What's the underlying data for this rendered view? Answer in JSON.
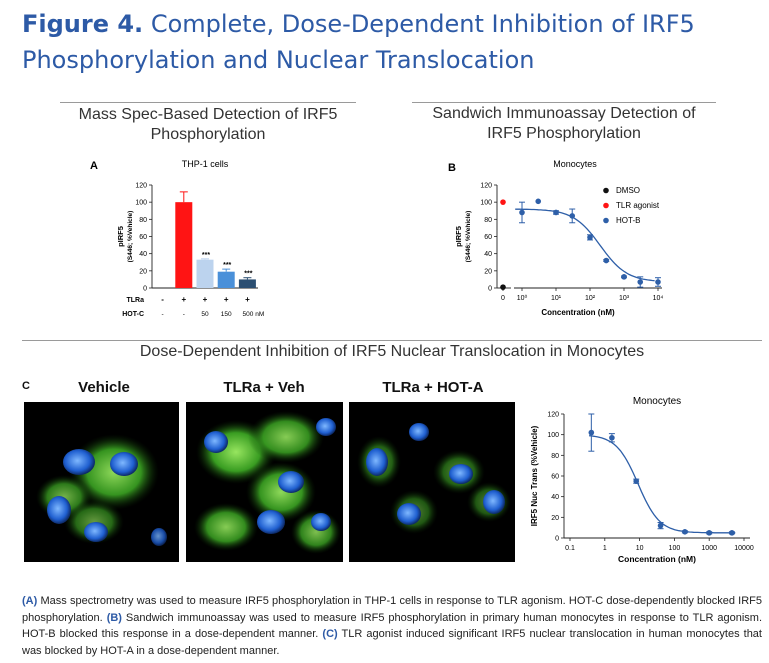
{
  "figure": {
    "label": "Figure 4.",
    "title": "Complete, Dose-Dependent Inhibition of IRF5 Phosphorylation and Nuclear Translocation"
  },
  "sections": {
    "a_title_line1": "Mass Spec-Based Detection of IRF5",
    "a_title_line2": "Phosphorylation",
    "b_title_line1": "Sandwich Immunoassay Detection of",
    "b_title_line2": "IRF5 Phosphorylation",
    "c_title": "Dose-Dependent Inhibition of IRF5 Nuclear Translocation in Monocytes"
  },
  "panel_letters": {
    "a": "A",
    "b": "B",
    "c": "C"
  },
  "image_panels": [
    {
      "title": "Vehicle"
    },
    {
      "title": "TLRa + Veh"
    },
    {
      "title": "TLRa + HOT-A"
    }
  ],
  "colors": {
    "title_blue": "#2d5aa6",
    "series_blue": "#2e5fa8",
    "red": "#ff1414",
    "light_blue": "#bcd3ee",
    "mid_blue": "#4a90d9",
    "dark_blue": "#2c4f72"
  },
  "chart_data": [
    {
      "id": "A",
      "type": "bar",
      "title": "THP-1 cells",
      "ylabel_line1": "pIRF5",
      "ylabel_line2": "(S446; %Vehicle)",
      "ylim": [
        0,
        120
      ],
      "yticks": [
        0,
        20,
        40,
        60,
        80,
        100,
        120
      ],
      "row_labels": {
        "tlra": "TLRa",
        "hotc": "HOT-C"
      },
      "bars": [
        {
          "tlra": "-",
          "hotc": "-",
          "value": 0,
          "error": 0,
          "sig": "",
          "color": "#ff1414"
        },
        {
          "tlra": "+",
          "hotc": "-",
          "value": 100,
          "error": 12,
          "sig": "",
          "color": "#ff1414"
        },
        {
          "tlra": "+",
          "hotc": "50",
          "value": 33,
          "error": 1,
          "sig": "***",
          "color": "#bcd3ee"
        },
        {
          "tlra": "+",
          "hotc": "150",
          "value": 19,
          "error": 3,
          "sig": "***",
          "color": "#4a90d9"
        },
        {
          "tlra": "+",
          "hotc": "500 nM",
          "value": 10,
          "error": 2,
          "sig": "***",
          "color": "#2c4f72"
        }
      ]
    },
    {
      "id": "B",
      "type": "scatter",
      "title": "Monocytes",
      "ylabel_line1": "pIRF5",
      "ylabel_line2": "(S446; %Vehicle)",
      "xlabel": "Concentration (nM)",
      "x_scale": "log",
      "ylim": [
        0,
        120
      ],
      "yticks": [
        0,
        20,
        40,
        60,
        80,
        100,
        120
      ],
      "xtick_labels": [
        "0",
        "10⁰",
        "10¹",
        "10²",
        "10³",
        "10⁴"
      ],
      "legend": [
        "DMSO",
        "TLR agonist",
        "HOT-B"
      ],
      "legend_colors": [
        "#111111",
        "#ff1414",
        "#2e5fa8"
      ],
      "controls": [
        {
          "name": "DMSO",
          "y": 1,
          "color": "#111111"
        },
        {
          "name": "TLR agonist",
          "y": 100,
          "color": "#ff1414"
        }
      ],
      "series": [
        {
          "name": "HOT-B",
          "x": [
            1,
            3,
            10,
            30,
            100,
            300,
            1000,
            3000,
            10000
          ],
          "y": [
            88,
            101,
            88,
            84,
            59,
            32,
            13,
            7,
            7
          ],
          "error": [
            12,
            0,
            2,
            8,
            3,
            1,
            1,
            6,
            5
          ]
        }
      ]
    },
    {
      "id": "C",
      "type": "scatter",
      "title": "Monocytes",
      "ylabel": "IRF5 Nuc Trans (%Vehicle)",
      "xlabel": "Concentration (nM)",
      "x_scale": "log",
      "ylim": [
        0,
        120
      ],
      "yticks": [
        0,
        20,
        40,
        60,
        80,
        100,
        120
      ],
      "xtick_labels": [
        "0.1",
        "1",
        "10",
        "100",
        "1000",
        "10000"
      ],
      "series": [
        {
          "name": "",
          "x": [
            0.41,
            1.6,
            8,
            40,
            200,
            1000,
            4500
          ],
          "y": [
            102,
            97,
            55,
            12,
            6,
            5,
            5
          ],
          "error": [
            18,
            4,
            2,
            3,
            1,
            1,
            1
          ]
        }
      ]
    }
  ],
  "caption": {
    "a_label": "(A)",
    "a_text": " Mass spectrometry was used to measure IRF5 phosphorylation in THP-1 cells in response to TLR agonism. HOT-C dose-dependently blocked IRF5 phosphorylation. ",
    "b_label": "(B)",
    "b_text": " Sandwich immunoassay was used to measure IRF5 phosphorylation in primary human monocytes in response to TLR agonism. HOT-B blocked this response in a dose-dependent manner. ",
    "c_label": "(C)",
    "c_text": " TLR agonist induced significant IRF5 nuclear translocation in human monocytes that was blocked by HOT-A in a dose-dependent manner."
  }
}
